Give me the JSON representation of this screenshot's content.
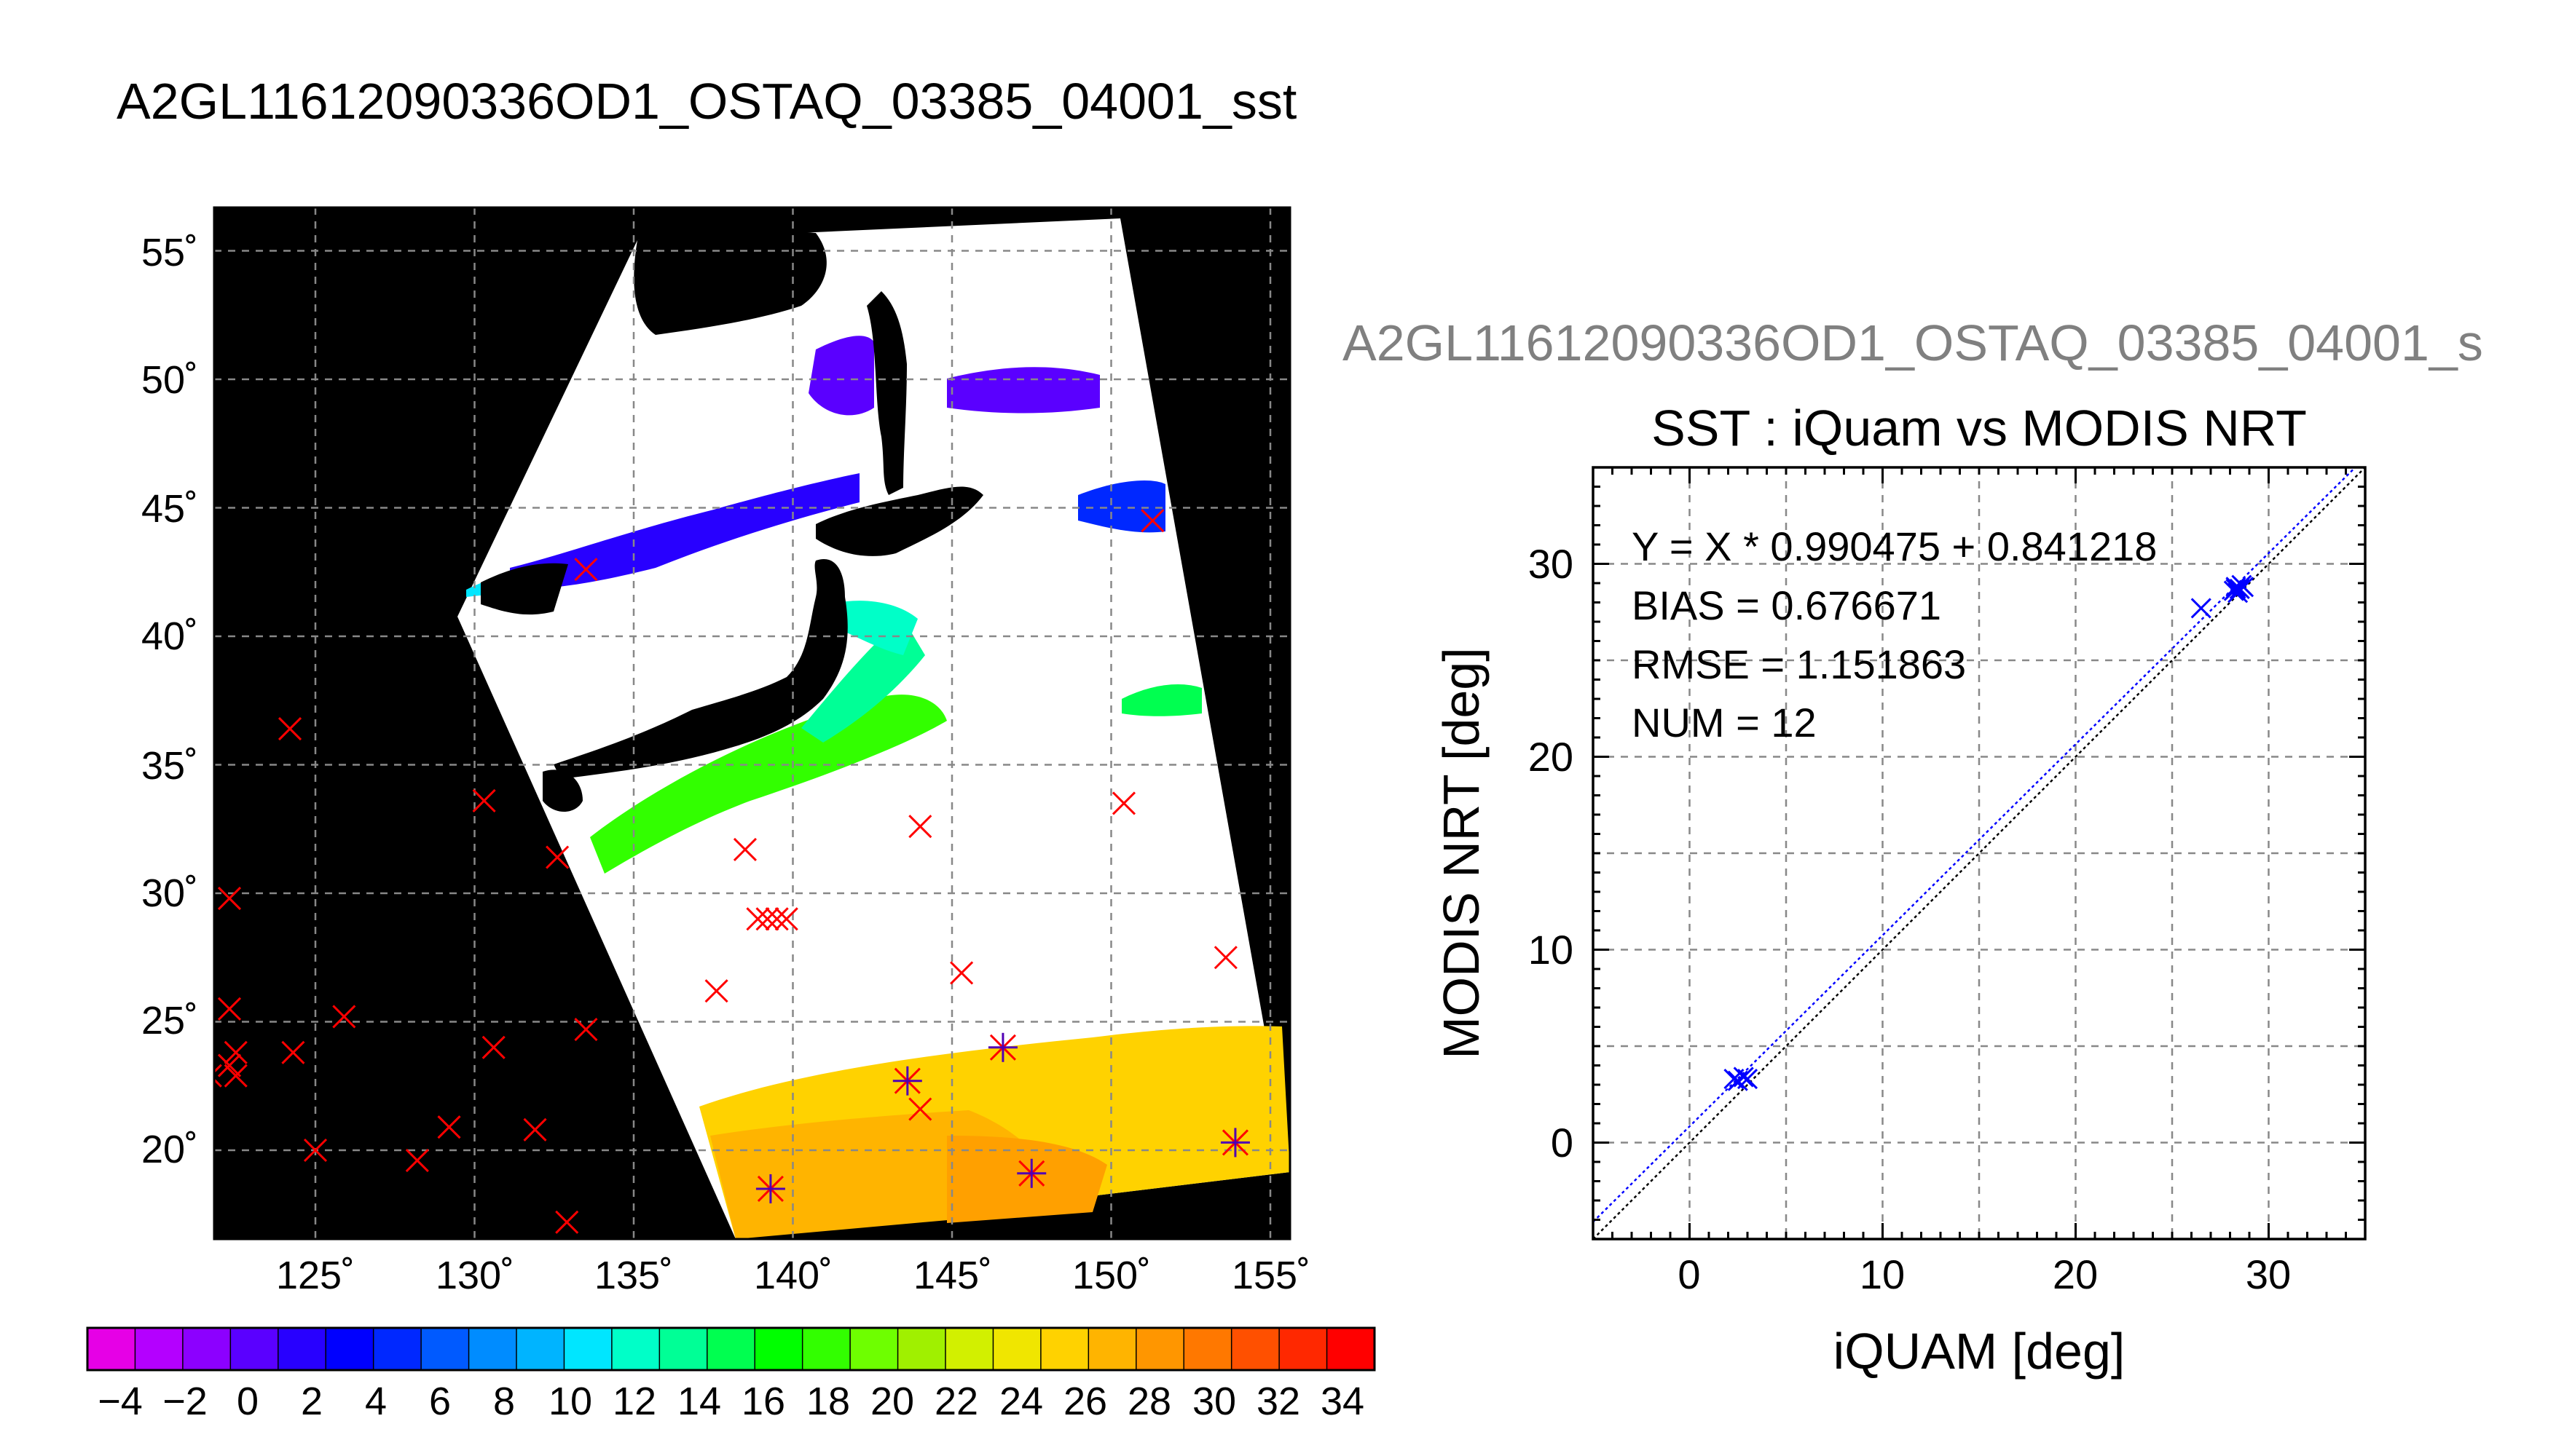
{
  "main_title": "A2GL11612090336OD1_OSTAQ_03385_04001_sst",
  "map": {
    "lon_ticks": [
      "125˚",
      "130˚",
      "135˚",
      "140˚",
      "145˚",
      "150˚",
      "155˚"
    ],
    "lat_ticks": [
      "20˚",
      "25˚",
      "30˚",
      "35˚",
      "40˚",
      "45˚",
      "50˚",
      "55˚"
    ],
    "red_marks": [
      [
        122.3,
        29.8
      ],
      [
        122.3,
        25.5
      ],
      [
        122.5,
        23.8
      ],
      [
        122.3,
        23.3
      ],
      [
        122.5,
        22.9
      ],
      [
        121.7,
        22.9
      ],
      [
        124.2,
        36.4
      ],
      [
        124.3,
        23.8
      ],
      [
        125.0,
        20.0
      ],
      [
        125.9,
        25.2
      ],
      [
        128.2,
        19.6
      ],
      [
        129.2,
        20.9
      ],
      [
        130.3,
        33.6
      ],
      [
        130.6,
        24.0
      ],
      [
        131.9,
        20.8
      ],
      [
        132.6,
        31.4
      ],
      [
        132.9,
        17.2
      ],
      [
        133.5,
        24.7
      ],
      [
        137.6,
        26.2
      ],
      [
        138.5,
        31.7
      ],
      [
        138.9,
        29.0
      ],
      [
        139.2,
        29.0
      ],
      [
        139.5,
        29.0
      ],
      [
        139.8,
        29.0
      ],
      [
        144.0,
        32.6
      ],
      [
        144.0,
        21.6
      ],
      [
        145.3,
        26.9
      ],
      [
        150.4,
        33.5
      ],
      [
        153.6,
        27.5
      ],
      [
        151.3,
        44.5
      ],
      [
        133.5,
        42.6
      ]
    ],
    "paired_marks": [
      [
        139.3,
        18.5
      ],
      [
        143.6,
        22.7
      ],
      [
        146.6,
        24.0
      ],
      [
        147.5,
        19.1
      ],
      [
        153.9,
        20.3
      ]
    ]
  },
  "colorbar": {
    "labels": [
      "−4",
      "−2",
      "0",
      "2",
      "4",
      "6",
      "8",
      "10",
      "12",
      "14",
      "16",
      "18",
      "20",
      "22",
      "24",
      "26",
      "28",
      "30",
      "32",
      "34"
    ],
    "colors": [
      "#e600e6",
      "#b400ff",
      "#8c00ff",
      "#5a00ff",
      "#2800ff",
      "#0000ff",
      "#0028ff",
      "#005aff",
      "#008cff",
      "#00b4ff",
      "#00e6ff",
      "#00ffc8",
      "#00ff96",
      "#00ff50",
      "#00ff00",
      "#32ff00",
      "#6eff00",
      "#a0f000",
      "#d2f000",
      "#f0e600",
      "#ffd200",
      "#ffb400",
      "#ff9600",
      "#ff7800",
      "#ff5000",
      "#ff2800",
      "#ff0000"
    ]
  },
  "scatter_title": "A2GL11612090336OD1_OSTAQ_03385_04001_s",
  "chart_data": {
    "type": "scatter",
    "title": "SST : iQuam vs MODIS NRT",
    "xlabel": "iQUAM [deg]",
    "ylabel": "MODIS NRT [deg]",
    "xlim": [
      -5,
      35
    ],
    "ylim": [
      -5,
      35
    ],
    "xticks": [
      "0",
      "10",
      "20",
      "30"
    ],
    "yticks": [
      "0",
      "10",
      "20",
      "30"
    ],
    "grid": true,
    "annotations": [
      "Y = X * 0.990475 + 0.841218",
      "BIAS = 0.676671",
      "RMSE = 1.151863",
      "NUM = 12"
    ],
    "fit": {
      "slope": 0.990475,
      "intercept": 0.841218
    },
    "points": [
      [
        2.3,
        3.3
      ],
      [
        2.5,
        3.2
      ],
      [
        2.8,
        3.4
      ],
      [
        3.0,
        3.3
      ],
      [
        26.5,
        27.7
      ],
      [
        28.2,
        28.6
      ],
      [
        28.3,
        28.8
      ],
      [
        28.5,
        28.7
      ],
      [
        28.6,
        28.9
      ],
      [
        28.4,
        28.5
      ],
      [
        28.7,
        28.8
      ],
      [
        28.3,
        28.7
      ]
    ],
    "point_color": "#0000ff"
  }
}
